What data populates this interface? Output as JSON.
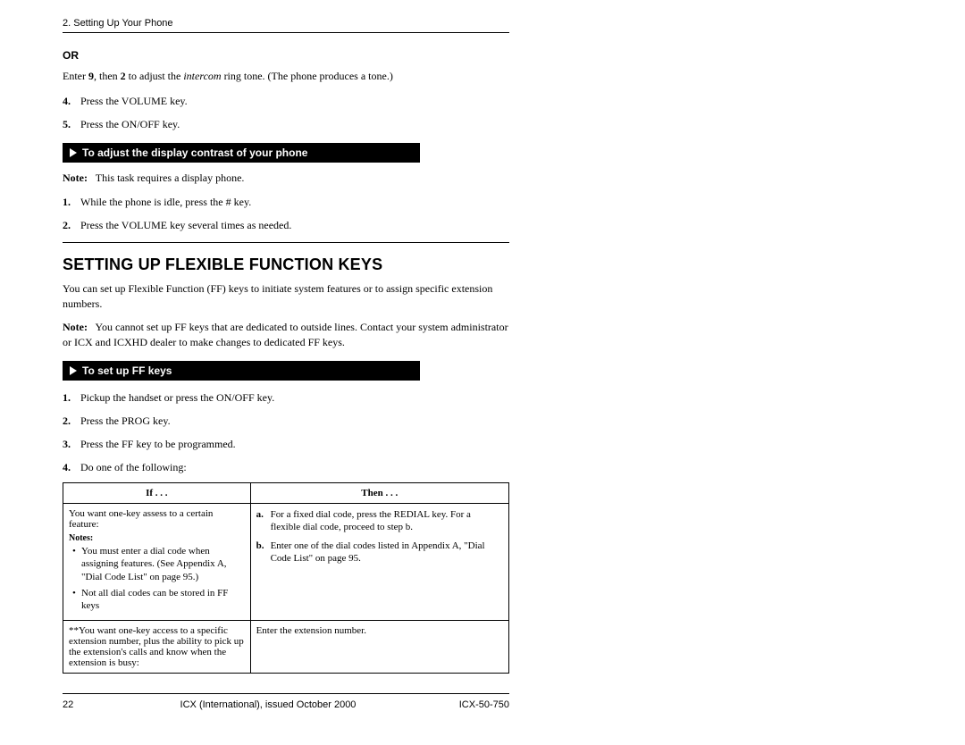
{
  "header": {
    "chapter": "2. Setting Up Your Phone"
  },
  "or_label": "OR",
  "intro_enter": "Enter ",
  "intro_9": "9",
  "intro_then2": ", then ",
  "intro_2": "2",
  "intro_adjust": " to adjust the ",
  "intro_intercom": "intercom",
  "intro_ringtone": " ring tone. (The phone produces a tone.)",
  "steps_a": {
    "s4_num": "4.",
    "s4a": "Press the ",
    "s4b": "VOLUME",
    "s4c": " key.",
    "s5_num": "5.",
    "s5a": "Press the ",
    "s5b": "ON/OFF",
    "s5c": " key."
  },
  "bar1": "To adjust the display contrast of your phone",
  "note1_label": "Note:",
  "note1_text": "   This task requires a display phone.",
  "steps_b": {
    "s1_num": "1.",
    "s1a": "While the phone is idle, press the ",
    "s1b": "#",
    "s1c": " key.",
    "s2_num": "2.",
    "s2a": "Press the ",
    "s2b": "VOLUME",
    "s2c": " key several times as needed."
  },
  "section_title": "Setting Up Flexible Function Keys",
  "section_p1": "You can set up Flexible Function (FF) keys to initiate system features or to assign specific extension numbers.",
  "note2_label": "Note:",
  "note2_text": "   You cannot set up FF keys that are dedicated to outside lines. Contact your system administrator or ICX and ICXHD dealer to make changes to dedicated FF keys.",
  "bar2": "To set up FF keys",
  "steps_c": {
    "s1_num": "1.",
    "s1a": "Pickup the handset or press the ",
    "s1b": "ON/OFF",
    "s1c": " key.",
    "s2_num": "2.",
    "s2a": "Press the ",
    "s2b": "PROG",
    "s2c": " key.",
    "s3_num": "3.",
    "s3": "Press the FF key to be programmed.",
    "s4_num": "4.",
    "s4": "Do one of the following:"
  },
  "table": {
    "h_if": "If . . .",
    "h_then": "Then . . .",
    "r1_if_main": "You want one-key assess to a certain feature:",
    "r1_notes_hdr": "Notes:",
    "r1_b1a": "You must enter a ",
    "r1_b1b": "dial code",
    "r1_b1c": " when assigning features. (See Appendix A, \"Dial Code List\" on page 95.)",
    "r1_b2": "Not all dial codes can be stored in FF keys",
    "r1_then_a_num": "a.",
    "r1_then_a1": "For a ",
    "r1_then_a2": "fixed dial code",
    "r1_then_a3": ", press the ",
    "r1_then_a4": "REDIAL",
    "r1_then_a5": " key. For a ",
    "r1_then_a6": "flexible dial code",
    "r1_then_a7": ", proceed to step b.",
    "r1_then_b_num": "b.",
    "r1_then_b": "Enter one of the dial codes listed in Appendix A, \"Dial Code List\" on page 95.",
    "r2_if": "**You want one-key access to a specific extension number, plus the ability to pick up the extension's calls and know when the extension is busy:",
    "r2_then": "Enter the extension number."
  },
  "footer": {
    "page": "22",
    "mid": "ICX (International), issued October 2000",
    "doc": "ICX-50-750"
  }
}
